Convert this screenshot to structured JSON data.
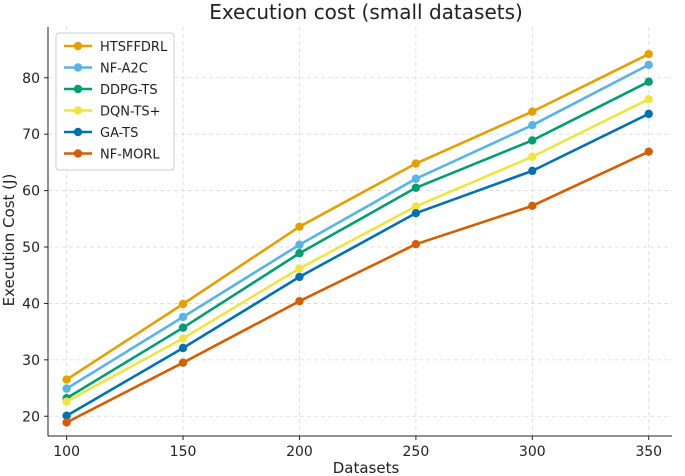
{
  "chart_data": {
    "type": "line",
    "title": "Execution cost (small datasets)",
    "xlabel": "Datasets",
    "ylabel": "Execution Cost (J)",
    "x": [
      100,
      150,
      200,
      250,
      300,
      350
    ],
    "xlim": [
      92,
      360
    ],
    "ylim": [
      16.5,
      89
    ],
    "xticks": [
      100,
      150,
      200,
      250,
      300,
      350
    ],
    "yticks": [
      20,
      30,
      40,
      50,
      60,
      70,
      80
    ],
    "grid": true,
    "legend_position": "top-left",
    "series": [
      {
        "name": "HTSFFDRL",
        "color": "#E69F00",
        "values": [
          26.5,
          39.9,
          53.6,
          64.8,
          74.0,
          84.2
        ]
      },
      {
        "name": "NF-A2C",
        "color": "#56B4E9",
        "values": [
          24.9,
          37.6,
          50.4,
          62.1,
          71.6,
          82.3
        ]
      },
      {
        "name": "DDPG-TS",
        "color": "#009E73",
        "values": [
          23.2,
          35.7,
          48.9,
          60.5,
          68.9,
          79.3
        ]
      },
      {
        "name": "DQN-TS+",
        "color": "#F0E442",
        "values": [
          22.6,
          33.8,
          46.2,
          57.2,
          66.0,
          76.2
        ]
      },
      {
        "name": "GA-TS",
        "color": "#0072B2",
        "values": [
          20.1,
          32.1,
          44.7,
          56.0,
          63.5,
          73.6
        ]
      },
      {
        "name": "NF-MORL",
        "color": "#D55E00",
        "values": [
          18.9,
          29.5,
          40.4,
          50.5,
          57.3,
          66.9
        ]
      }
    ]
  }
}
